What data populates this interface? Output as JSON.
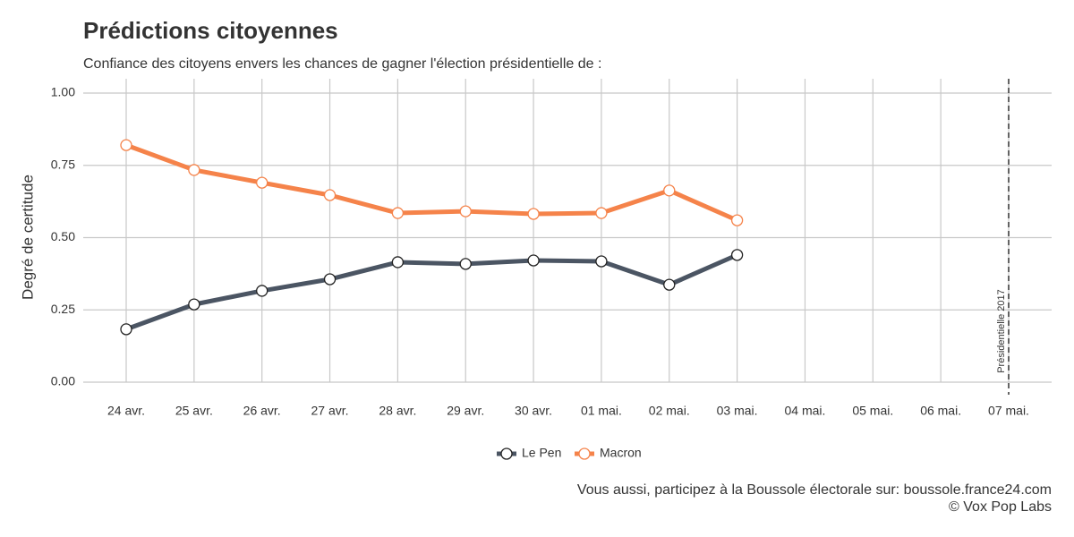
{
  "chart_data": {
    "type": "line",
    "title": "Prédictions citoyennes",
    "subtitle": "Confiance des citoyens envers les chances de gagner l'élection présidentielle de :",
    "y_label": "Degré de certitude",
    "caption": [
      "Vous aussi, participez à la Boussole électorale sur: boussole.france24.com",
      "© Vox Pop Labs"
    ],
    "categories": [
      "24 avr.",
      "25 avr.",
      "26 avr.",
      "27 avr.",
      "28 avr.",
      "29 avr.",
      "30 avr.",
      "01 mai.",
      "02 mai.",
      "03 mai.",
      "04 mai.",
      "05 mai.",
      "06 mai.",
      "07 mai."
    ],
    "series": [
      {
        "name": "Le Pen",
        "color": "#4b5563",
        "values": [
          0.183,
          0.269,
          0.316,
          0.356,
          0.415,
          0.409,
          0.421,
          0.418,
          0.337,
          0.44,
          null,
          null,
          null,
          null
        ]
      },
      {
        "name": "Macron",
        "color": "#f5834a",
        "values": [
          0.82,
          0.734,
          0.69,
          0.647,
          0.585,
          0.591,
          0.582,
          0.585,
          0.663,
          0.56,
          null,
          null,
          null,
          null
        ]
      }
    ],
    "ylim": [
      0,
      1
    ],
    "yticks": [
      {
        "value": 0,
        "label": "0.00"
      },
      {
        "value": 0.25,
        "label": "0.25"
      },
      {
        "value": 0.5,
        "label": "0.50"
      },
      {
        "value": 0.75,
        "label": "0.75"
      },
      {
        "value": 1,
        "label": "1.00"
      }
    ],
    "grid": true,
    "legend": "bottom",
    "annotation": {
      "text": "Présidentielle 2017",
      "category": "07 mai."
    }
  }
}
